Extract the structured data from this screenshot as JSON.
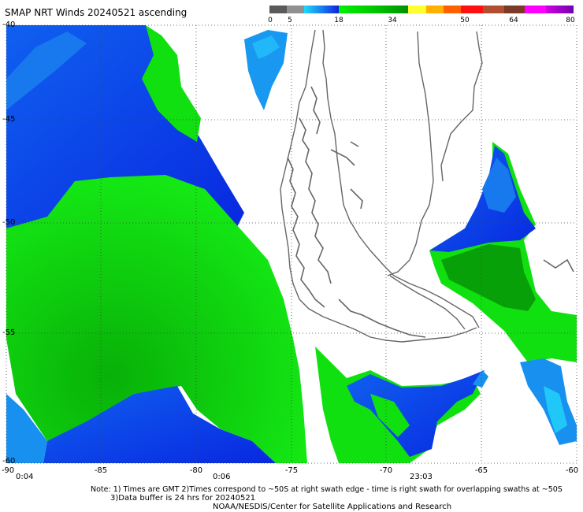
{
  "title": "SMAP NRT Winds 20240521 ascending",
  "colorbar": {
    "ticks": [
      "0",
      "5",
      "18",
      "34",
      "50",
      "64",
      "80"
    ],
    "segments": [
      "#5a5a5a",
      "#909090",
      "#20c0f0",
      "#1e64e6",
      "#1020d8",
      "#00e000",
      "#00cc00",
      "#00a000",
      "#ffff30",
      "#ffb000",
      "#ff6000",
      "#ff2020",
      "#e00000",
      "#a05030",
      "#805050",
      "#703020",
      "#ff00ff",
      "#c000e0",
      "#8000c0"
    ]
  },
  "axes": {
    "lat_labels": [
      "-40",
      "-45",
      "-50",
      "-55",
      "-60"
    ],
    "lon_labels": [
      "-90",
      "-85",
      "-80",
      "-75",
      "-70",
      "-65",
      "-60"
    ],
    "lat_range": [
      -60,
      -40
    ],
    "lon_range": [
      -90,
      -60
    ]
  },
  "times": [
    "0:04",
    "0:06",
    "23:03"
  ],
  "notes": {
    "line1": "Note: 1) Times are GMT  2)Times correspond to ~50S at right swath edge - time is right swath for overlapping swaths at ~50S",
    "line2": "3)Data buffer is 24 hrs for 20240521",
    "line3": "NOAA/NESDIS/Center for Satellite Applications and Research"
  },
  "colors": {
    "blue": "#0838e8",
    "lightblue": "#1890f0",
    "cyan": "#20c8f8",
    "green": "#10e010",
    "darkgreen": "#08a808",
    "coast": "#666666"
  }
}
